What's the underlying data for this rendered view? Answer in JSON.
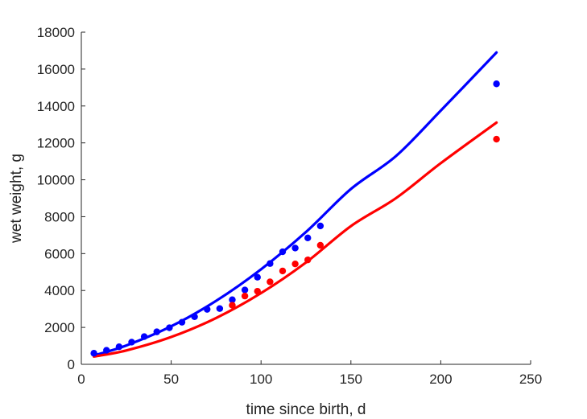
{
  "chart_data": {
    "type": "scatter",
    "title": "",
    "xlabel": "time since birth, d",
    "ylabel": "wet weight, g",
    "xlim": [
      0,
      250
    ],
    "ylim": [
      0,
      18000
    ],
    "xticks": [
      0,
      50,
      100,
      150,
      200,
      250
    ],
    "yticks": [
      0,
      2000,
      4000,
      6000,
      8000,
      10000,
      12000,
      14000,
      16000,
      18000
    ],
    "grid": false,
    "legend": "none",
    "series": [
      {
        "kind": "points",
        "color": "#0000ff",
        "points": [
          [
            7,
            600
          ],
          [
            14,
            760
          ],
          [
            21,
            950
          ],
          [
            28,
            1200
          ],
          [
            35,
            1500
          ],
          [
            42,
            1760
          ],
          [
            49,
            1980
          ],
          [
            56,
            2280
          ],
          [
            63,
            2580
          ],
          [
            70,
            2980
          ],
          [
            77,
            3020
          ],
          [
            84,
            3500
          ],
          [
            91,
            4030
          ],
          [
            98,
            4720
          ],
          [
            105,
            5460
          ],
          [
            112,
            6100
          ],
          [
            119,
            6300
          ],
          [
            126,
            6850
          ],
          [
            133,
            7500
          ],
          [
            231,
            15200
          ]
        ]
      },
      {
        "kind": "points",
        "color": "#ff0000",
        "points": [
          [
            84,
            3200
          ],
          [
            91,
            3700
          ],
          [
            98,
            3960
          ],
          [
            105,
            4470
          ],
          [
            112,
            5060
          ],
          [
            119,
            5440
          ],
          [
            126,
            5660
          ],
          [
            133,
            6450
          ],
          [
            231,
            12200
          ]
        ]
      },
      {
        "kind": "line",
        "color": "#0000ff",
        "points": [
          [
            7,
            480
          ],
          [
            25,
            1020
          ],
          [
            50,
            2060
          ],
          [
            75,
            3440
          ],
          [
            100,
            5150
          ],
          [
            125,
            7170
          ],
          [
            150,
            9500
          ],
          [
            175,
            11280
          ],
          [
            200,
            13750
          ],
          [
            231,
            16900
          ]
        ]
      },
      {
        "kind": "line",
        "color": "#ff0000",
        "points": [
          [
            7,
            420
          ],
          [
            25,
            750
          ],
          [
            50,
            1480
          ],
          [
            75,
            2510
          ],
          [
            100,
            3860
          ],
          [
            125,
            5520
          ],
          [
            150,
            7490
          ],
          [
            175,
            9000
          ],
          [
            200,
            10900
          ],
          [
            231,
            13100
          ]
        ]
      }
    ]
  }
}
